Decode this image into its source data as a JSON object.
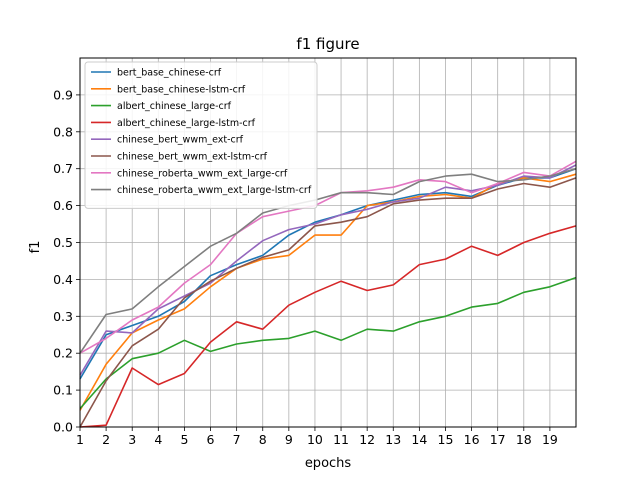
{
  "chart_data": {
    "type": "line",
    "title": "f1 figure",
    "xlabel": "epochs",
    "ylabel": "f1",
    "xlim": [
      1,
      20
    ],
    "ylim": [
      0.0,
      1.0
    ],
    "x_ticks": [
      "1",
      "2",
      "3",
      "4",
      "5",
      "6",
      "7",
      "8",
      "9",
      "10",
      "11",
      "12",
      "13",
      "14",
      "15",
      "16",
      "17",
      "18",
      "19"
    ],
    "y_ticks": [
      "0.0",
      "0.1",
      "0.2",
      "0.3",
      "0.4",
      "0.5",
      "0.6",
      "0.7",
      "0.8",
      "0.9"
    ],
    "grid": true,
    "legend_position": "top-left",
    "x": [
      1,
      2,
      3,
      4,
      5,
      6,
      7,
      8,
      9,
      10,
      11,
      12,
      13,
      14,
      15,
      16,
      17,
      18,
      19,
      20
    ],
    "series": [
      {
        "name": "bert_base_chinese-crf",
        "color": "#1f77b4",
        "values": [
          0.13,
          0.25,
          0.275,
          0.3,
          0.34,
          0.41,
          0.44,
          0.465,
          0.52,
          0.555,
          0.575,
          0.6,
          0.615,
          0.63,
          0.635,
          0.625,
          0.655,
          0.675,
          0.675,
          0.7
        ]
      },
      {
        "name": "bert_base_chinese-lstm-crf",
        "color": "#ff7f0e",
        "values": [
          0.045,
          0.17,
          0.255,
          0.29,
          0.32,
          0.38,
          0.43,
          0.455,
          0.465,
          0.52,
          0.52,
          0.6,
          0.61,
          0.625,
          0.63,
          0.62,
          0.66,
          0.675,
          0.665,
          0.685
        ]
      },
      {
        "name": "albert_chinese_large-crf",
        "color": "#2ca02c",
        "values": [
          0.05,
          0.13,
          0.185,
          0.2,
          0.235,
          0.205,
          0.225,
          0.235,
          0.24,
          0.26,
          0.235,
          0.265,
          0.26,
          0.285,
          0.3,
          0.325,
          0.335,
          0.365,
          0.38,
          0.405
        ]
      },
      {
        "name": "albert_chinese_large-lstm-crf",
        "color": "#d62728",
        "values": [
          0.0,
          0.005,
          0.16,
          0.115,
          0.145,
          0.23,
          0.285,
          0.265,
          0.33,
          0.365,
          0.395,
          0.37,
          0.385,
          0.44,
          0.455,
          0.49,
          0.465,
          0.5,
          0.525,
          0.545
        ]
      },
      {
        "name": "chinese_bert_wwm_ext-crf",
        "color": "#9467bd",
        "values": [
          0.14,
          0.26,
          0.255,
          0.32,
          0.355,
          0.39,
          0.45,
          0.505,
          0.535,
          0.55,
          0.575,
          0.59,
          0.61,
          0.62,
          0.65,
          0.64,
          0.655,
          0.68,
          0.675,
          0.71
        ]
      },
      {
        "name": "chinese_bert_wwm_ext-lstm-crf",
        "color": "#8c564b",
        "values": [
          0.0,
          0.125,
          0.22,
          0.265,
          0.35,
          0.395,
          0.43,
          0.46,
          0.48,
          0.545,
          0.555,
          0.57,
          0.605,
          0.615,
          0.62,
          0.62,
          0.645,
          0.66,
          0.65,
          0.675
        ]
      },
      {
        "name": "chinese_roberta_wwm_ext_large-crf",
        "color": "#e377c2",
        "values": [
          0.2,
          0.24,
          0.29,
          0.325,
          0.39,
          0.44,
          0.525,
          0.57,
          0.585,
          0.6,
          0.635,
          0.64,
          0.65,
          0.67,
          0.665,
          0.635,
          0.66,
          0.69,
          0.68,
          0.72
        ]
      },
      {
        "name": "chinese_roberta_wwm_ext_large-lstm-crf",
        "color": "#7f7f7f",
        "values": [
          0.2,
          0.305,
          0.32,
          0.38,
          0.435,
          0.49,
          0.525,
          0.58,
          0.6,
          0.615,
          0.635,
          0.635,
          0.63,
          0.665,
          0.68,
          0.685,
          0.665,
          0.67,
          0.68,
          0.7
        ]
      }
    ]
  }
}
